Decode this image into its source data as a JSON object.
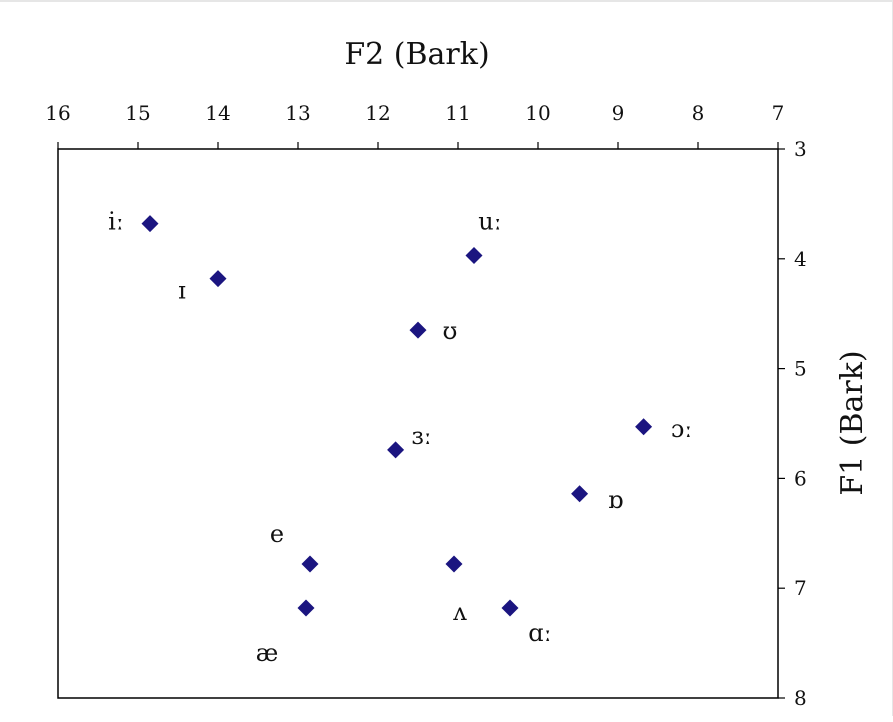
{
  "chart_data": {
    "type": "scatter",
    "title": "",
    "xlabel": "F2 (Bark)",
    "ylabel": "F1 (Bark)",
    "x_axis_position": "top",
    "y_axis_position": "right",
    "xlim": [
      16,
      7
    ],
    "ylim": [
      3,
      8
    ],
    "x_ticks": [
      "16",
      "15",
      "14",
      "13",
      "12",
      "11",
      "10",
      "9",
      "8",
      "7"
    ],
    "y_ticks": [
      "3",
      "4",
      "5",
      "6",
      "7",
      "8"
    ],
    "marker": "diamond",
    "marker_color": "#1b1580",
    "grid": false,
    "legend": "none",
    "points": [
      {
        "label": "iː",
        "x": 14.85,
        "y": 3.68
      },
      {
        "label": "ɪ",
        "x": 14.0,
        "y": 4.18
      },
      {
        "label": "uː",
        "x": 10.8,
        "y": 3.97
      },
      {
        "label": "ʊ",
        "x": 11.5,
        "y": 4.65
      },
      {
        "label": "ɜː",
        "x": 11.78,
        "y": 5.74
      },
      {
        "label": "ɔː",
        "x": 8.68,
        "y": 5.53
      },
      {
        "label": "ɒ",
        "x": 9.48,
        "y": 6.14
      },
      {
        "label": "e",
        "x": 12.85,
        "y": 6.78
      },
      {
        "label": "ʌ",
        "x": 11.05,
        "y": 6.78
      },
      {
        "label": "æ",
        "x": 12.9,
        "y": 7.18
      },
      {
        "label": "ɑː",
        "x": 10.35,
        "y": 7.18
      }
    ]
  }
}
